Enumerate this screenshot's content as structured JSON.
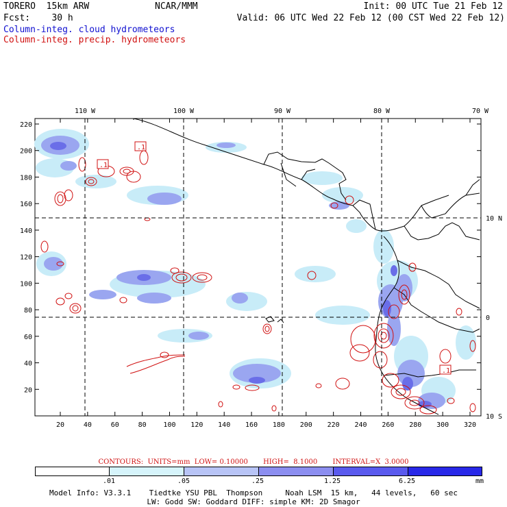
{
  "header": {
    "model": "TORERO  15km ARW",
    "center": "NCAR/MMM",
    "init": "Init: 00 UTC Tue 21 Feb 12",
    "fcst": "Fcst:    30 h",
    "valid": "Valid: 06 UTC Wed 22 Feb 12 (00 CST Wed 22 Feb 12)",
    "field_cloud": "Column-integ. cloud hydrometeors",
    "field_precip": "Column-integ. precip. hydrometeors"
  },
  "map": {
    "top_lon_labels": [
      "110 W",
      "100 W",
      "90 W",
      "80 W",
      "70 W"
    ],
    "right_lat_labels": [
      "10 N",
      "0",
      "10 S"
    ],
    "y_ticks": [
      "220",
      "200",
      "180",
      "160",
      "140",
      "120",
      "100",
      "80",
      "60",
      "40",
      "20"
    ],
    "x_ticks": [
      "20",
      "40",
      "60",
      "80",
      "100",
      "120",
      "140",
      "160",
      "180",
      "200",
      "220",
      "240",
      "260",
      "280",
      "300",
      "320"
    ],
    "contour_labels": [
      ".1",
      ".1",
      ".1"
    ],
    "colors": {
      "land": "#000000",
      "cloud_light": "#c8ecf8",
      "cloud_mid": "#9aa6f0",
      "cloud_dark": "#6a6ee8",
      "precip": "#d01010",
      "grid": "#000000"
    }
  },
  "contours_text": "CONTOURS:  UNITS=mm  LOW= 0.10000       HIGH=  8.1000       INTERVAL=X  3.0000",
  "colorbar": {
    "labels": [
      ".01",
      ".05",
      ".25",
      "1.25",
      "6.25"
    ],
    "unit": "mm",
    "colors": [
      "#ffffff",
      "#d6f4fb",
      "#b8c4f6",
      "#8c8ef0",
      "#5a5aee",
      "#2828e8"
    ]
  },
  "footer": {
    "line1": "Model Info: V3.3.1    Tiedtke YSU PBL  Thompson     Noah LSM  15 km,   44 levels,   60 sec",
    "line2": "LW: Godd SW: Goddard DIFF: simple KM: 2D Smagor"
  }
}
